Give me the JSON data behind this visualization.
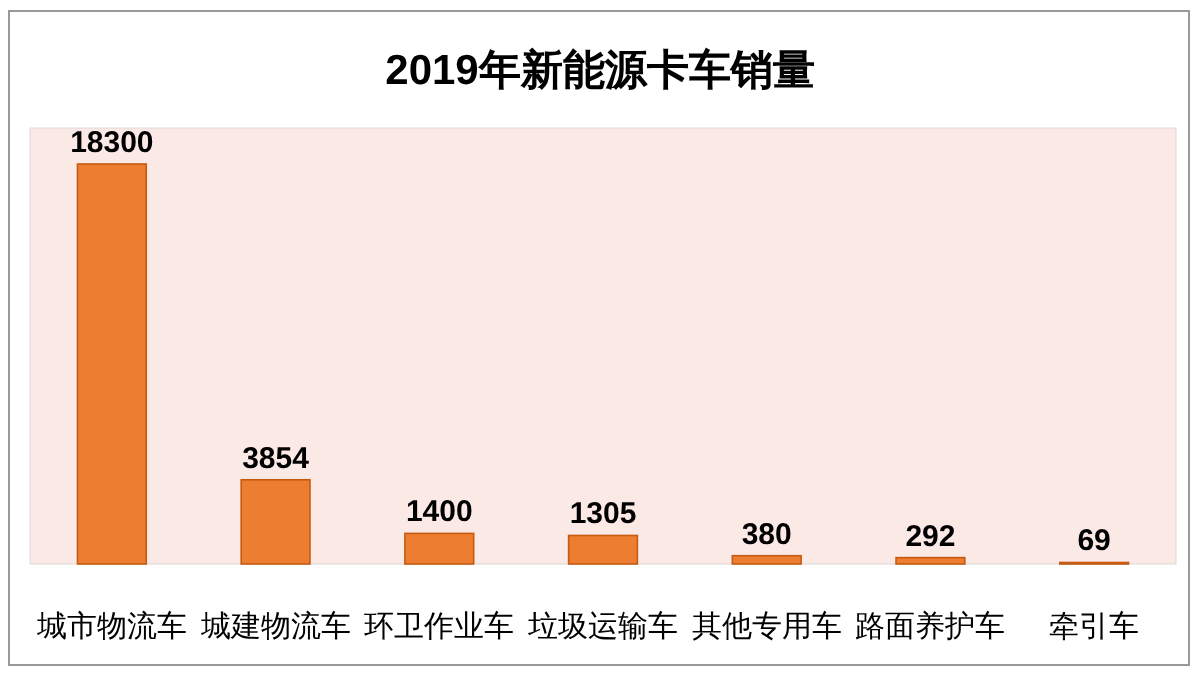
{
  "chart_data": {
    "type": "bar",
    "title": "2019年新能源卡车销量",
    "categories": [
      "城市物流车",
      "城建物流车",
      "环卫作业车",
      "垃圾运输车",
      "其他专用车",
      "路面养护车",
      "牵引车"
    ],
    "values": [
      18300,
      3854,
      1400,
      1305,
      380,
      292,
      69
    ],
    "color": "#ed7d31",
    "data_labels": true
  }
}
